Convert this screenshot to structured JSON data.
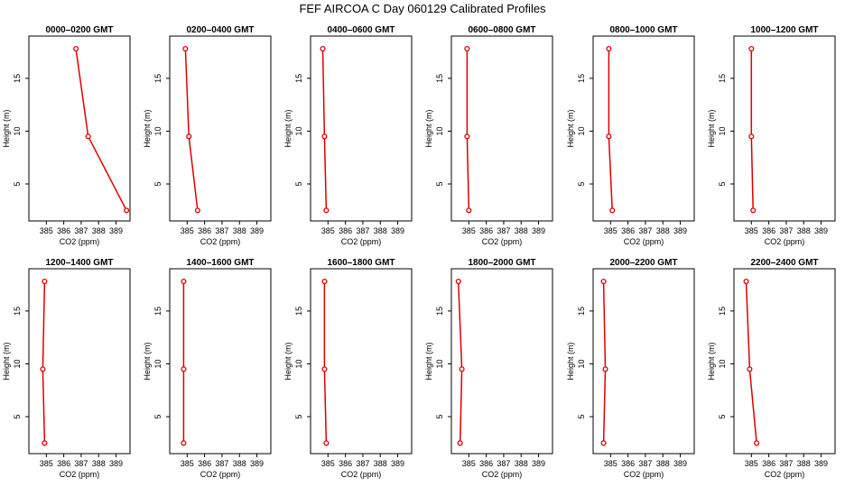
{
  "figure": {
    "title": "FEF AIRCOA C  Day 060129  Calibrated Profiles"
  },
  "chart_data": [
    {
      "type": "line",
      "title": "0000–0200 GMT",
      "xlabel": "CO2 (ppm)",
      "ylabel": "Height (m)",
      "xlim": [
        384,
        389.8
      ],
      "ylim": [
        1.5,
        19
      ],
      "xticks": [
        385,
        386,
        387,
        388,
        389
      ],
      "yticks": [
        5,
        10,
        15
      ],
      "series": [
        {
          "x": [
            389.6,
            387.4,
            386.7
          ],
          "y": [
            2.5,
            9.5,
            17.8
          ]
        }
      ]
    },
    {
      "type": "line",
      "title": "0200–0400 GMT",
      "xlabel": "CO2 (ppm)",
      "ylabel": "Height (m)",
      "xlim": [
        384,
        389.8
      ],
      "ylim": [
        1.5,
        19
      ],
      "xticks": [
        385,
        386,
        387,
        388,
        389
      ],
      "yticks": [
        5,
        10,
        15
      ],
      "series": [
        {
          "x": [
            385.6,
            385.1,
            384.9
          ],
          "y": [
            2.5,
            9.5,
            17.8
          ]
        }
      ]
    },
    {
      "type": "line",
      "title": "0400–0600 GMT",
      "xlabel": "CO2 (ppm)",
      "ylabel": "Height (m)",
      "xlim": [
        384,
        389.8
      ],
      "ylim": [
        1.5,
        19
      ],
      "xticks": [
        385,
        386,
        387,
        388,
        389
      ],
      "yticks": [
        5,
        10,
        15
      ],
      "series": [
        {
          "x": [
            384.9,
            384.8,
            384.7
          ],
          "y": [
            2.5,
            9.5,
            17.8
          ]
        }
      ]
    },
    {
      "type": "line",
      "title": "0600–0800 GMT",
      "xlabel": "CO2 (ppm)",
      "ylabel": "Height (m)",
      "xlim": [
        384,
        389.8
      ],
      "ylim": [
        1.5,
        19
      ],
      "xticks": [
        385,
        386,
        387,
        388,
        389
      ],
      "yticks": [
        5,
        10,
        15
      ],
      "series": [
        {
          "x": [
            385.0,
            384.9,
            384.9
          ],
          "y": [
            2.5,
            9.5,
            17.8
          ]
        }
      ]
    },
    {
      "type": "line",
      "title": "0800–1000 GMT",
      "xlabel": "CO2 (ppm)",
      "ylabel": "Height (m)",
      "xlim": [
        384,
        389.8
      ],
      "ylim": [
        1.5,
        19
      ],
      "xticks": [
        385,
        386,
        387,
        388,
        389
      ],
      "yticks": [
        5,
        10,
        15
      ],
      "series": [
        {
          "x": [
            385.1,
            384.9,
            384.9
          ],
          "y": [
            2.5,
            9.5,
            17.8
          ]
        }
      ]
    },
    {
      "type": "line",
      "title": "1000–1200 GMT",
      "xlabel": "CO2 (ppm)",
      "ylabel": "Height (m)",
      "xlim": [
        384,
        389.8
      ],
      "ylim": [
        1.5,
        19
      ],
      "xticks": [
        385,
        386,
        387,
        388,
        389
      ],
      "yticks": [
        5,
        10,
        15
      ],
      "series": [
        {
          "x": [
            385.1,
            385.0,
            385.0
          ],
          "y": [
            2.5,
            9.5,
            17.8
          ]
        }
      ]
    },
    {
      "type": "line",
      "title": "1200–1400 GMT",
      "xlabel": "CO2 (ppm)",
      "ylabel": "Height (m)",
      "xlim": [
        384,
        389.8
      ],
      "ylim": [
        1.5,
        19
      ],
      "xticks": [
        385,
        386,
        387,
        388,
        389
      ],
      "yticks": [
        5,
        10,
        15
      ],
      "series": [
        {
          "x": [
            384.9,
            384.8,
            384.9
          ],
          "y": [
            2.5,
            9.5,
            17.8
          ]
        }
      ]
    },
    {
      "type": "line",
      "title": "1400–1600 GMT",
      "xlabel": "CO2 (ppm)",
      "ylabel": "Height (m)",
      "xlim": [
        384,
        389.8
      ],
      "ylim": [
        1.5,
        19
      ],
      "xticks": [
        385,
        386,
        387,
        388,
        389
      ],
      "yticks": [
        5,
        10,
        15
      ],
      "series": [
        {
          "x": [
            384.8,
            384.8,
            384.8
          ],
          "y": [
            2.5,
            9.5,
            17.8
          ]
        }
      ]
    },
    {
      "type": "line",
      "title": "1600–1800 GMT",
      "xlabel": "CO2 (ppm)",
      "ylabel": "Height (m)",
      "xlim": [
        384,
        389.8
      ],
      "ylim": [
        1.5,
        19
      ],
      "xticks": [
        385,
        386,
        387,
        388,
        389
      ],
      "yticks": [
        5,
        10,
        15
      ],
      "series": [
        {
          "x": [
            384.9,
            384.8,
            384.8
          ],
          "y": [
            2.5,
            9.5,
            17.8
          ]
        }
      ]
    },
    {
      "type": "line",
      "title": "1800–2000 GMT",
      "xlabel": "CO2 (ppm)",
      "ylabel": "Height (m)",
      "xlim": [
        384,
        389.8
      ],
      "ylim": [
        1.5,
        19
      ],
      "xticks": [
        385,
        386,
        387,
        388,
        389
      ],
      "yticks": [
        5,
        10,
        15
      ],
      "series": [
        {
          "x": [
            384.5,
            384.6,
            384.4
          ],
          "y": [
            2.5,
            9.5,
            17.8
          ]
        }
      ]
    },
    {
      "type": "line",
      "title": "2000–2200 GMT",
      "xlabel": "CO2 (ppm)",
      "ylabel": "Height (m)",
      "xlim": [
        384,
        389.8
      ],
      "ylim": [
        1.5,
        19
      ],
      "xticks": [
        385,
        386,
        387,
        388,
        389
      ],
      "yticks": [
        5,
        10,
        15
      ],
      "series": [
        {
          "x": [
            384.6,
            384.7,
            384.6
          ],
          "y": [
            2.5,
            9.5,
            17.8
          ]
        }
      ]
    },
    {
      "type": "line",
      "title": "2200–2400 GMT",
      "xlabel": "CO2 (ppm)",
      "ylabel": "Height (m)",
      "xlim": [
        384,
        389.8
      ],
      "ylim": [
        1.5,
        19
      ],
      "xticks": [
        385,
        386,
        387,
        388,
        389
      ],
      "yticks": [
        5,
        10,
        15
      ],
      "series": [
        {
          "x": [
            385.3,
            384.9,
            384.7
          ],
          "y": [
            2.5,
            9.5,
            17.8
          ]
        }
      ]
    }
  ],
  "style": {
    "line_color": "#dd0000",
    "axis_color": "#000000",
    "background": "#ffffff"
  }
}
